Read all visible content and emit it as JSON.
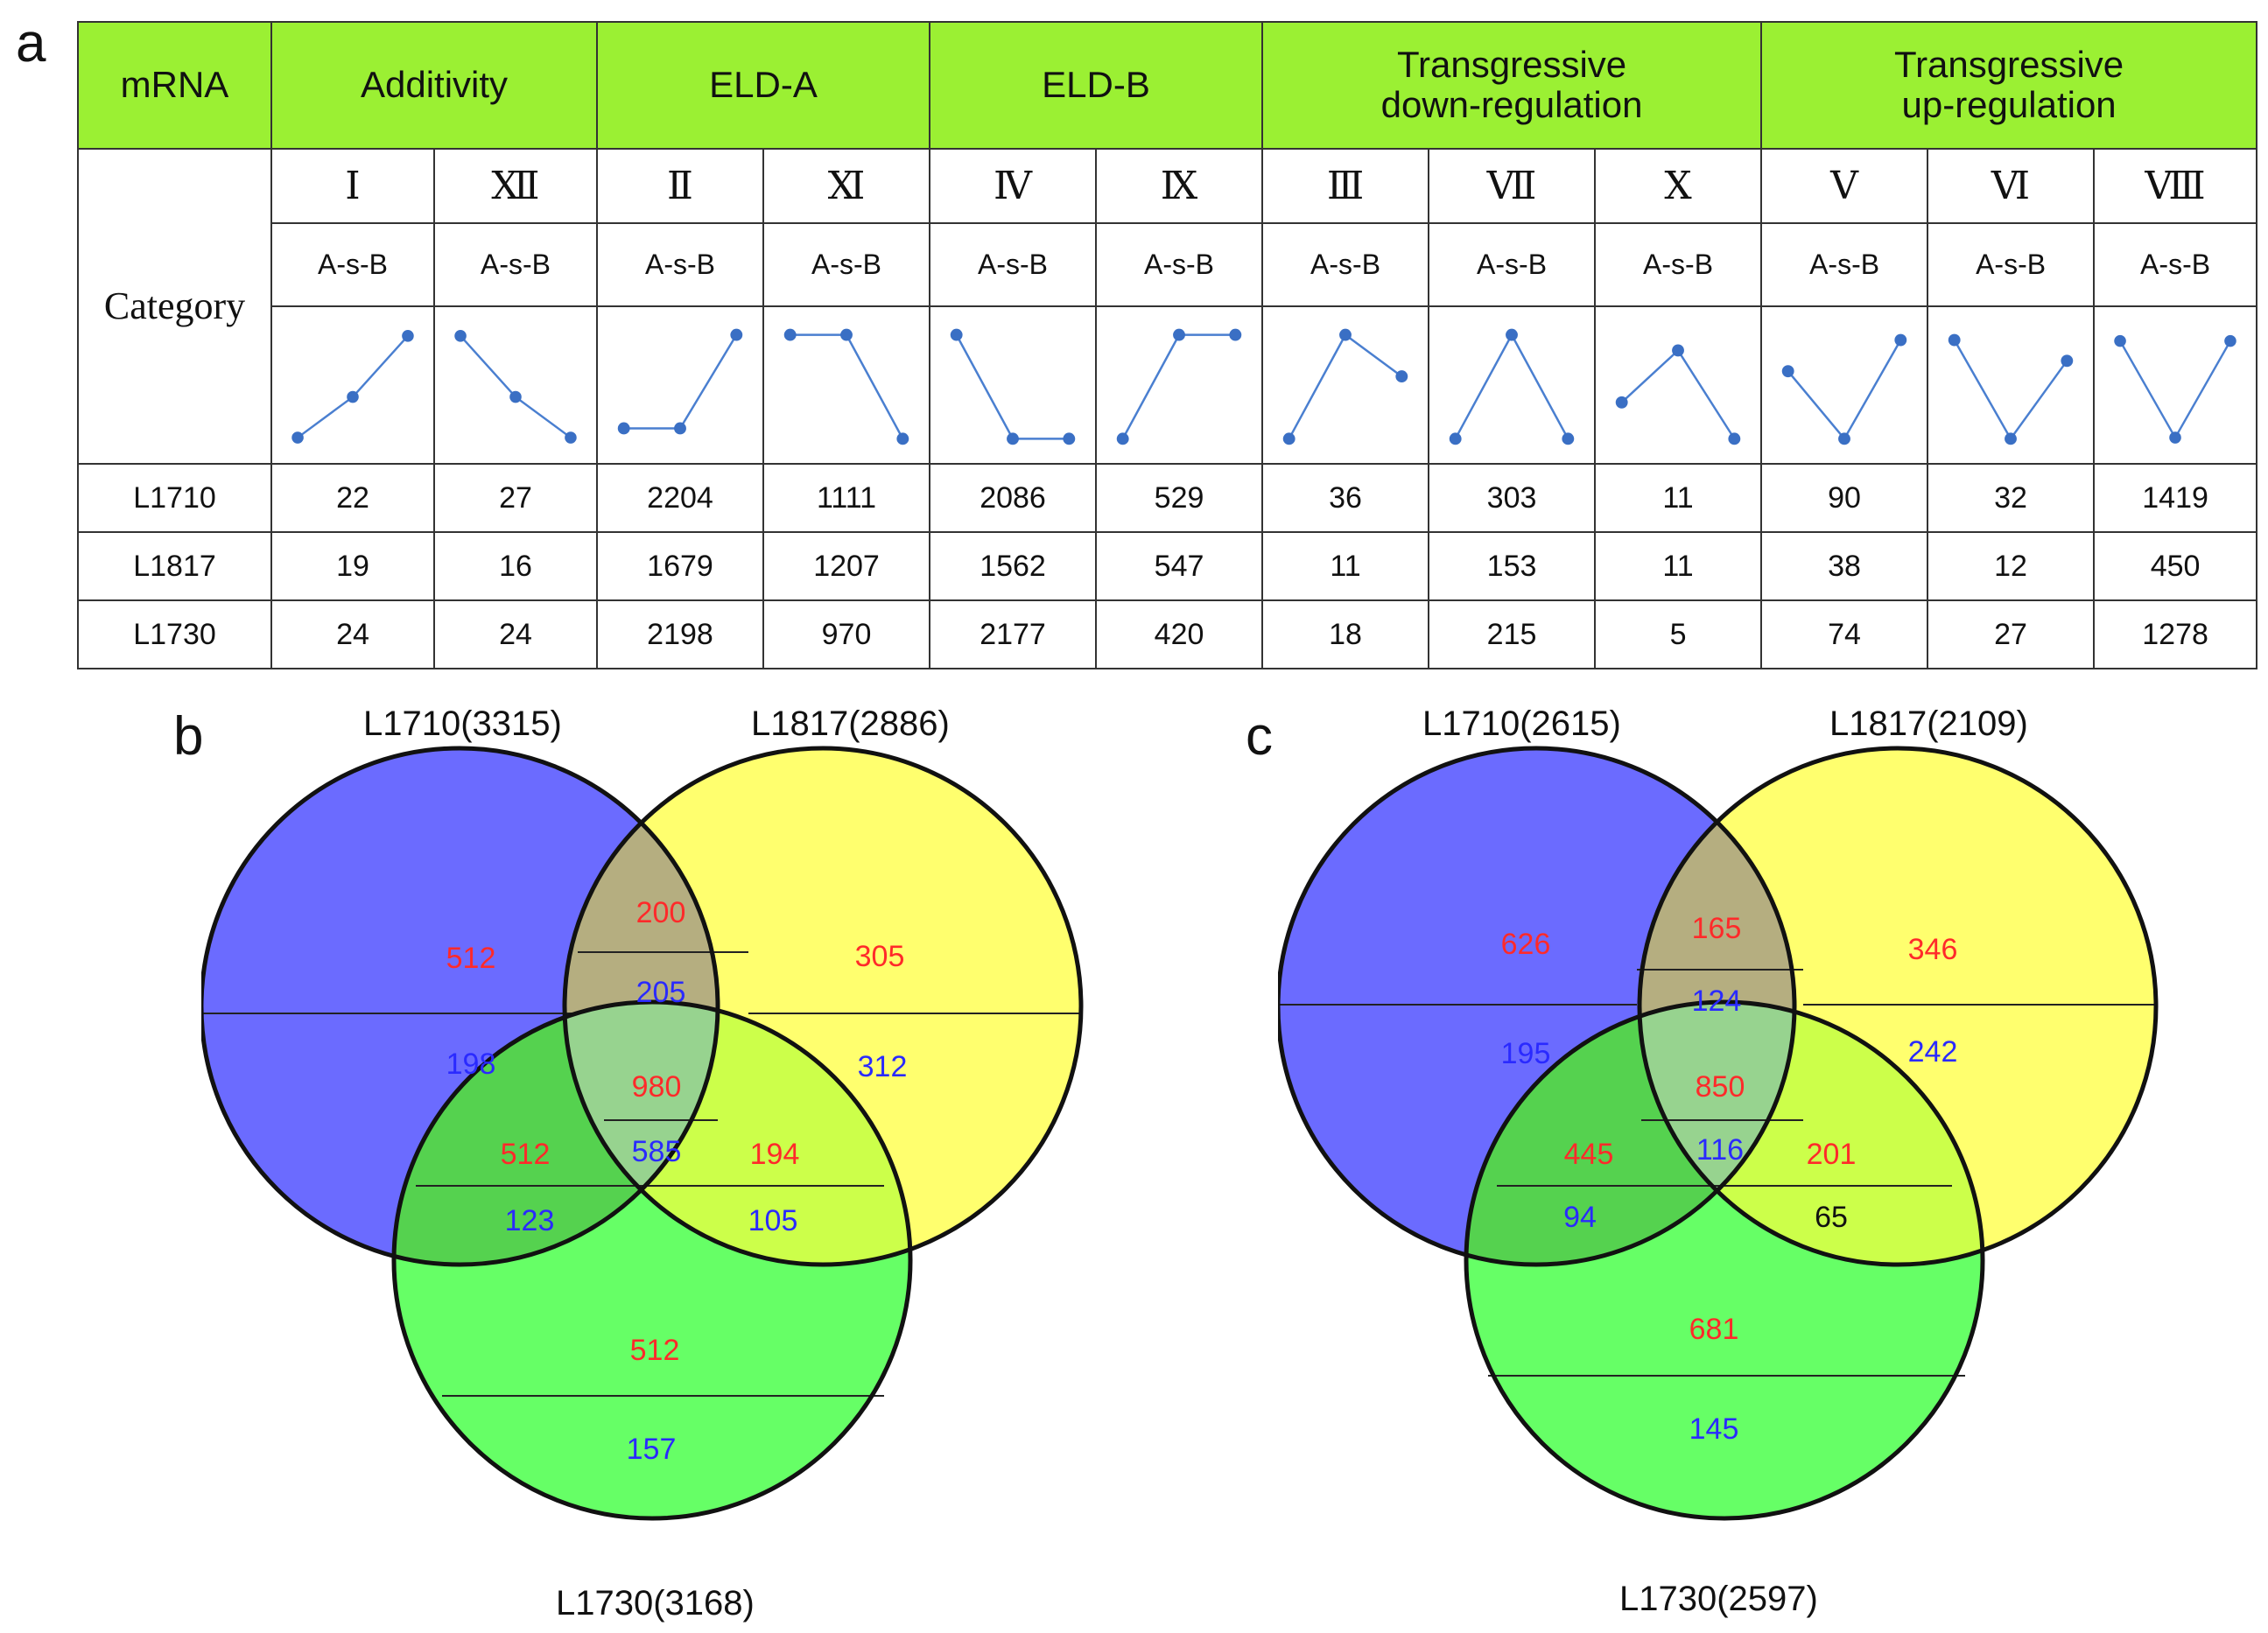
{
  "panels": {
    "a": "a",
    "b": "b",
    "c": "c"
  },
  "table": {
    "header": {
      "mrna": "mRNA",
      "groups": [
        "Additivity",
        "ELD-A",
        "ELD-B",
        "Transgressive\ndown-regulation",
        "Transgressive\nup-regulation"
      ]
    },
    "category_label": "Category",
    "romans": [
      "Ⅰ",
      "Ⅻ",
      "Ⅱ",
      "Ⅺ",
      "Ⅳ",
      "Ⅸ",
      "Ⅲ",
      "Ⅶ",
      "Ⅹ",
      "Ⅴ",
      "Ⅵ",
      "Ⅷ"
    ],
    "asb": [
      "A-s-B",
      "A-s-B",
      "A-s-B",
      "A-s-B",
      "A-s-B",
      "A-s-B",
      "A-s-B",
      "A-s-B",
      "A-s-B",
      "A-s-B",
      "A-s-B",
      "A-s-B"
    ],
    "patterns": [
      [
        0.0,
        0.4,
        1.0
      ],
      [
        1.0,
        0.4,
        0.0
      ],
      [
        0.1,
        0.1,
        1.0
      ],
      [
        1.0,
        1.0,
        0.0
      ],
      [
        1.0,
        0.0,
        0.0
      ],
      [
        0.0,
        1.0,
        1.0
      ],
      [
        0.0,
        1.0,
        0.6
      ],
      [
        0.0,
        1.0,
        0.0
      ],
      [
        0.35,
        0.85,
        0.0
      ],
      [
        0.65,
        0.0,
        0.95
      ],
      [
        0.95,
        0.0,
        0.75
      ],
      [
        0.95,
        0.0,
        0.95
      ]
    ],
    "rows": [
      {
        "label": "L1710",
        "values": [
          "22",
          "27",
          "2204",
          "1111",
          "2086",
          "529",
          "36",
          "303",
          "11",
          "90",
          "32",
          "1419"
        ]
      },
      {
        "label": "L1817",
        "values": [
          "19",
          "16",
          "1679",
          "1207",
          "1562",
          "547",
          "11",
          "153",
          "11",
          "38",
          "12",
          "450"
        ]
      },
      {
        "label": "L1730",
        "values": [
          "24",
          "24",
          "2198",
          "970",
          "2177",
          "420",
          "18",
          "215",
          "5",
          "74",
          "27",
          "1278"
        ]
      }
    ]
  },
  "venn_b": {
    "set_a": "L1710(3315)",
    "set_b": "L1817(2886)",
    "set_c": "L1730(3168)",
    "a_only": [
      "512",
      "198"
    ],
    "b_only": [
      "305",
      "312"
    ],
    "ab": [
      "200",
      "205"
    ],
    "abc": [
      "980",
      "585"
    ],
    "ac": [
      "512",
      "123"
    ],
    "bc": [
      "194",
      "105"
    ],
    "c_only": [
      "512",
      "157"
    ]
  },
  "venn_c": {
    "set_a": "L1710(2615)",
    "set_b": "L1817(2109)",
    "set_c": "L1730(2597)",
    "a_only": [
      "626",
      "195"
    ],
    "b_only": [
      "346",
      "242"
    ],
    "ab": [
      "165",
      "124"
    ],
    "abc": [
      "850",
      "116"
    ],
    "ac": [
      "445",
      "94"
    ],
    "bc": [
      "201",
      "65"
    ],
    "c_only": [
      "681",
      "145"
    ]
  },
  "colors": {
    "header_bg": "#9bf033",
    "circle_a": "#6b6bff",
    "circle_b": "#ffff6e",
    "circle_c": "#66ff66",
    "overlap_ab": "#b5ae80",
    "overlap_ac": "#55d24f",
    "overlap_bc": "#ccff4a",
    "overlap_abc": "#97d38f",
    "line": "#4a7fd0",
    "dot": "#3a6fc4"
  }
}
